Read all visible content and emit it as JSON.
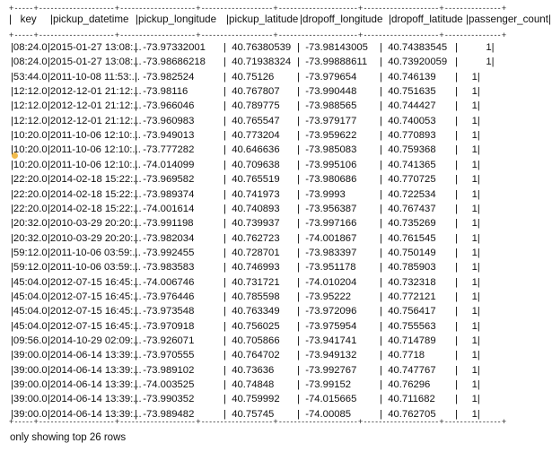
{
  "separator": "+-----+--------------------+--------------------+-------------------+---------------------+--------------------+---------------+",
  "columns": [
    "key",
    "pickup_datetime",
    "pickup_longitude",
    "pickup_latitude",
    "dropoff_longitude",
    "dropoff_latitude",
    "passenger_count"
  ],
  "rows": [
    [
      "|08:24.0",
      "|2015-01-27 13:08:...",
      "|  -73.97332001",
      "|  40.76380539",
      "|  -73.98143005",
      "|  40.74383545",
      "|          1|"
    ],
    [
      "|08:24.0",
      "|2015-01-27 13:08:...",
      "|  -73.98686218",
      "|  40.71938324",
      "|  -73.99888611",
      "|  40.73920059",
      "|          1|"
    ],
    [
      "|53:44.0",
      "|2011-10-08 11:53:...",
      "|  -73.982524",
      "|  40.75126",
      "|  -73.979654",
      "|  40.746139",
      "|     1|"
    ],
    [
      "|12:12.0",
      "|2012-12-01 21:12:...",
      "|  -73.98116",
      "|  40.767807",
      "|  -73.990448",
      "|  40.751635",
      "|     1|"
    ],
    [
      "|12:12.0",
      "|2012-12-01 21:12:...",
      "|  -73.966046",
      "|  40.789775",
      "|  -73.988565",
      "|  40.744427",
      "|     1|"
    ],
    [
      "|12:12.0",
      "|2012-12-01 21:12:...",
      "|  -73.960983",
      "|  40.765547",
      "|  -73.979177",
      "|  40.740053",
      "|     1|"
    ],
    [
      "|10:20.0",
      "|2011-10-06 12:10:...",
      "|  -73.949013",
      "|  40.773204",
      "|  -73.959622",
      "|  40.770893",
      "|     1|"
    ],
    [
      "|10:20.0",
      "|2011-10-06 12:10:...",
      "|  -73.777282",
      "|  40.646636",
      "|  -73.985083",
      "|  40.759368",
      "|     1|"
    ],
    [
      "|10:20.0",
      "|2011-10-06 12:10:...",
      "|  -74.014099",
      "|  40.709638",
      "|  -73.995106",
      "|  40.741365",
      "|     1|"
    ],
    [
      "|22:20.0",
      "|2014-02-18 15:22:...",
      "|  -73.969582",
      "|  40.765519",
      "|  -73.980686",
      "|  40.770725",
      "|     1|"
    ],
    [
      "|22:20.0",
      "|2014-02-18 15:22:...",
      "|  -73.989374",
      "|  40.741973",
      "|  -73.9993",
      "|  40.722534",
      "|     1|"
    ],
    [
      "|22:20.0",
      "|2014-02-18 15:22:...",
      "|  -74.001614",
      "|  40.740893",
      "|  -73.956387",
      "|  40.767437",
      "|     1|"
    ],
    [
      "|20:32.0",
      "|2010-03-29 20:20:...",
      "|  -73.991198",
      "|  40.739937",
      "|  -73.997166",
      "|  40.735269",
      "|     1|"
    ],
    [
      "|20:32.0",
      "|2010-03-29 20:20:...",
      "|  -73.982034",
      "|  40.762723",
      "|  -74.001867",
      "|  40.761545",
      "|     1|"
    ],
    [
      "|59:12.0",
      "|2011-10-06 03:59:...",
      "|  -73.992455",
      "|  40.728701",
      "|  -73.983397",
      "|  40.750149",
      "|     1|"
    ],
    [
      "|59:12.0",
      "|2011-10-06 03:59:...",
      "|  -73.983583",
      "|  40.746993",
      "|  -73.951178",
      "|  40.785903",
      "|     1|"
    ],
    [
      "|45:04.0",
      "|2012-07-15 16:45:...",
      "|  -74.006746",
      "|  40.731721",
      "|  -74.010204",
      "|  40.732318",
      "|     1|"
    ],
    [
      "|45:04.0",
      "|2012-07-15 16:45:...",
      "|  -73.976446",
      "|  40.785598",
      "|  -73.95222",
      "|  40.772121",
      "|     1|"
    ],
    [
      "|45:04.0",
      "|2012-07-15 16:45:...",
      "|  -73.973548",
      "|  40.763349",
      "|  -73.972096",
      "|  40.756417",
      "|     1|"
    ],
    [
      "|45:04.0",
      "|2012-07-15 16:45:...",
      "|  -73.970918",
      "|  40.756025",
      "|  -73.975954",
      "|  40.755563",
      "|     1|"
    ],
    [
      "|09:56.0",
      "|2014-10-29 02:09:...",
      "|  -73.926071",
      "|  40.705866",
      "|  -73.941741",
      "|  40.714789",
      "|     1|"
    ],
    [
      "|39:00.0",
      "|2014-06-14 13:39:...",
      "|  -73.970555",
      "|  40.764702",
      "|  -73.949132",
      "|  40.7718",
      "|     1|"
    ],
    [
      "|39:00.0",
      "|2014-06-14 13:39:...",
      "|  -73.989102",
      "|  40.73636",
      "|  -73.992767",
      "|  40.747767",
      "|     1|"
    ],
    [
      "|39:00.0",
      "|2014-06-14 13:39:...",
      "|  -74.003525",
      "|  40.74848",
      "|  -73.99152",
      "|  40.76296",
      "|     1|"
    ],
    [
      "|39:00.0",
      "|2014-06-14 13:39:...",
      "|  -73.990352",
      "|  40.759992",
      "|  -74.015665",
      "|  40.711682",
      "|     1|"
    ],
    [
      "|39:00.0",
      "|2014-06-14 13:39:...",
      "|  -73.989482",
      "|  40.75745",
      "|  -74.00085",
      "|  40.762705",
      "|     1|"
    ]
  ],
  "footer": "only showing top 26 rows"
}
